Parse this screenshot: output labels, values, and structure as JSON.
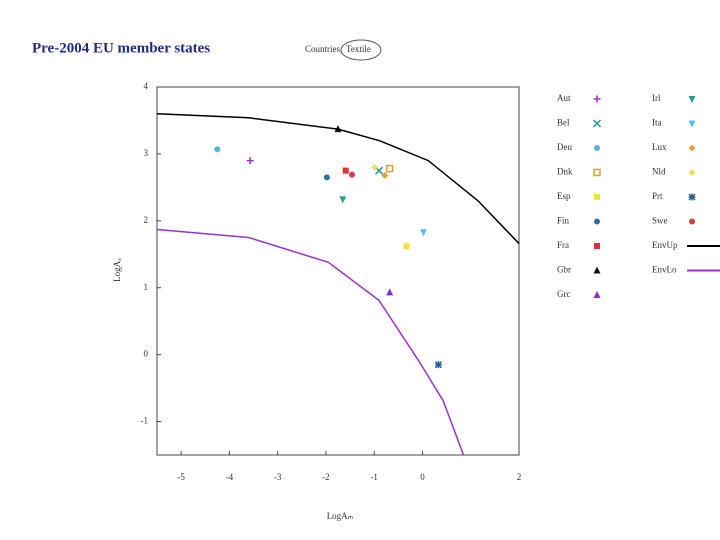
{
  "header": {
    "title": "Pre-2004 EU member states",
    "tabs": [
      "Countries,",
      "Textile"
    ]
  },
  "chart_data": {
    "type": "scatter",
    "x_label": "LogAₘ",
    "y_label": "LogAₓ",
    "xlim": [
      -5.5,
      2
    ],
    "ylim": [
      -1.5,
      4
    ],
    "xticks": [
      -5,
      -4,
      -3,
      -2,
      -1,
      0,
      2
    ],
    "yticks": [
      -1,
      0,
      1,
      2,
      3,
      4
    ],
    "series": [
      {
        "name": "Aut",
        "color": "#9b30c8",
        "marker": "plus",
        "x": [
          -3.57
        ],
        "y": [
          2.9
        ]
      },
      {
        "name": "Bel",
        "color": "#1a9a8a",
        "marker": "x",
        "x": [
          -0.9
        ],
        "y": [
          2.75
        ]
      },
      {
        "name": "Deu",
        "color": "#5ab0e0",
        "marker": "circle",
        "x": [
          -4.25
        ],
        "y": [
          3.07
        ]
      },
      {
        "name": "Dnk",
        "color": "#e0a030",
        "marker": "square-open",
        "x": [
          -0.68
        ],
        "y": [
          2.78
        ]
      },
      {
        "name": "Esp",
        "color": "#f0e040",
        "marker": "square",
        "x": [
          -0.33
        ],
        "y": [
          1.62
        ]
      },
      {
        "name": "Fin",
        "color": "#2a70a0",
        "marker": "circle",
        "x": [
          -1.98
        ],
        "y": [
          2.65
        ]
      },
      {
        "name": "Fra",
        "color": "#e03030",
        "marker": "square",
        "x": [
          -1.59
        ],
        "y": [
          2.75
        ]
      },
      {
        "name": "Gbr",
        "color": "#111111",
        "marker": "triangle",
        "x": [
          -1.75
        ],
        "y": [
          3.37
        ]
      },
      {
        "name": "Grc",
        "color": "#8a30d0",
        "marker": "triangle",
        "x": [
          -0.68
        ],
        "y": [
          0.93
        ]
      },
      {
        "name": "Irl",
        "color": "#20a090",
        "marker": "triangle-down",
        "x": [
          -1.65
        ],
        "y": [
          2.32
        ]
      },
      {
        "name": "Ita",
        "color": "#50c0e8",
        "marker": "triangle-down",
        "x": [
          0.02
        ],
        "y": [
          1.83
        ]
      },
      {
        "name": "Lux",
        "color": "#e0a040",
        "marker": "diamond",
        "x": [
          -0.78
        ],
        "y": [
          2.68
        ]
      },
      {
        "name": "Nld",
        "color": "#f0e060",
        "marker": "diamond",
        "x": [
          -0.99
        ],
        "y": [
          2.8
        ]
      },
      {
        "name": "Prt",
        "color": "#2a6090",
        "marker": "star",
        "x": [
          0.33
        ],
        "y": [
          -0.15
        ]
      },
      {
        "name": "Swe",
        "color": "#d04040",
        "marker": "circle",
        "x": [
          -1.46
        ],
        "y": [
          2.69
        ]
      },
      {
        "name": "EnvUp",
        "color": "#000000",
        "marker": "line",
        "x": [
          -5.5,
          -3.6,
          -1.75,
          -0.9,
          0.12,
          1.15,
          2
        ],
        "y": [
          3.6,
          3.54,
          3.37,
          3.2,
          2.9,
          2.3,
          1.66
        ]
      },
      {
        "name": "EnvLo",
        "color": "#9933cc",
        "marker": "line",
        "x": [
          -5.5,
          -3.6,
          -1.95,
          -0.9,
          -0.08,
          0.43,
          0.85
        ],
        "y": [
          1.87,
          1.75,
          1.38,
          0.81,
          -0.09,
          -0.69,
          -1.5
        ]
      }
    ]
  }
}
